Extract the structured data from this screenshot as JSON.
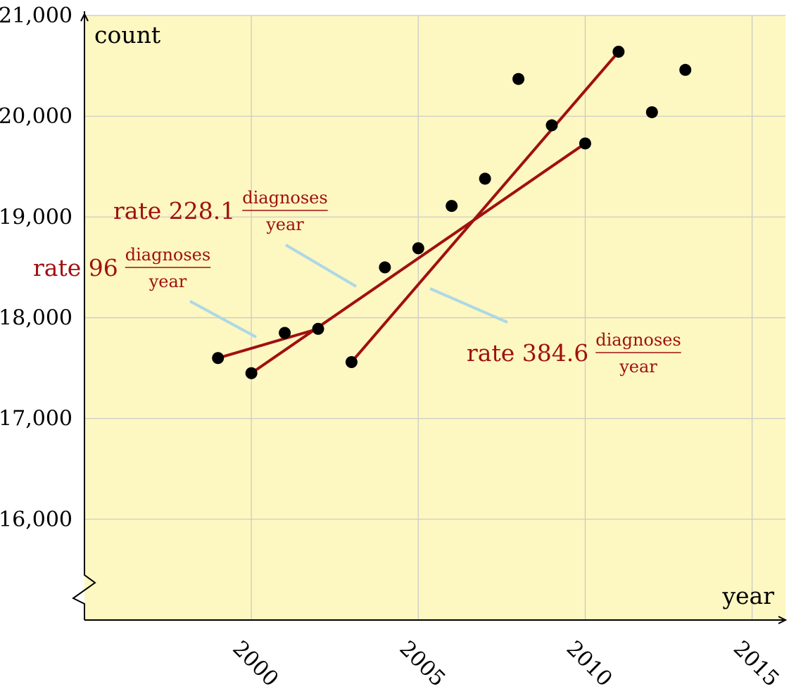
{
  "chart_data": {
    "type": "scatter",
    "xlabel": "year",
    "ylabel": "count",
    "xlim": [
      1995,
      2016
    ],
    "ylim": [
      15000,
      21000
    ],
    "x_ticks": [
      {
        "value": 2000,
        "label": "2000"
      },
      {
        "value": 2005,
        "label": "2005"
      },
      {
        "value": 2010,
        "label": "2010"
      },
      {
        "value": 2015,
        "label": "2015"
      }
    ],
    "y_ticks": [
      {
        "value": 16000,
        "label": "16,000"
      },
      {
        "value": 17000,
        "label": "17,000"
      },
      {
        "value": 18000,
        "label": "18,000"
      },
      {
        "value": 19000,
        "label": "19,000"
      },
      {
        "value": 20000,
        "label": "20,000"
      },
      {
        "value": 21000,
        "label": "21,000"
      }
    ],
    "grid": true,
    "axis_break": "y",
    "colors": {
      "background": "#fdf7c1",
      "points": "#000000",
      "fit_lines": "#a01010",
      "leader_lines": "#add8e6",
      "grid": "#c8c8c8"
    },
    "points": [
      {
        "x": 1999,
        "y": 17600
      },
      {
        "x": 2000,
        "y": 17450
      },
      {
        "x": 2001,
        "y": 17850
      },
      {
        "x": 2002,
        "y": 17890
      },
      {
        "x": 2003,
        "y": 17560
      },
      {
        "x": 2004,
        "y": 18500
      },
      {
        "x": 2005,
        "y": 18690
      },
      {
        "x": 2006,
        "y": 19110
      },
      {
        "x": 2007,
        "y": 19380
      },
      {
        "x": 2008,
        "y": 20370
      },
      {
        "x": 2009,
        "y": 19910
      },
      {
        "x": 2010,
        "y": 19730
      },
      {
        "x": 2011,
        "y": 20640
      },
      {
        "x": 2012,
        "y": 20040
      },
      {
        "x": 2013,
        "y": 20460
      }
    ],
    "fit_lines": [
      {
        "x": [
          1999,
          2002
        ],
        "y": [
          17600,
          17890
        ]
      },
      {
        "x": [
          2000,
          2010
        ],
        "y": [
          17450,
          19730
        ]
      },
      {
        "x": [
          2003,
          2011
        ],
        "y": [
          17560,
          20640
        ]
      }
    ],
    "annotations": [
      {
        "prefix": "rate",
        "value": "96",
        "numerator": "diagnoses",
        "denominator": "year"
      },
      {
        "prefix": "rate",
        "value": "228.1",
        "numerator": "diagnoses",
        "denominator": "year"
      },
      {
        "prefix": "rate",
        "value": "384.6",
        "numerator": "diagnoses",
        "denominator": "year"
      }
    ]
  }
}
